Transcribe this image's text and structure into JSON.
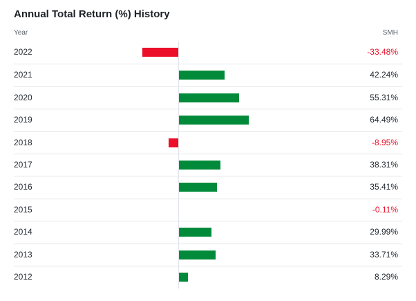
{
  "chart_data": {
    "type": "bar",
    "title": "Annual Total Return (%) History",
    "column_header_category": "Year",
    "column_header_series": "SMH",
    "categories": [
      "2022",
      "2021",
      "2020",
      "2019",
      "2018",
      "2017",
      "2016",
      "2015",
      "2014",
      "2013",
      "2012"
    ],
    "series": [
      {
        "name": "SMH",
        "values": [
          -33.48,
          42.24,
          55.31,
          64.49,
          -8.95,
          38.31,
          35.41,
          -0.11,
          29.99,
          33.71,
          8.29
        ]
      }
    ],
    "value_labels": [
      "-33.48%",
      "42.24%",
      "55.31%",
      "64.49%",
      "-8.95%",
      "38.31%",
      "35.41%",
      "-0.11%",
      "29.99%",
      "33.71%",
      "8.29%"
    ],
    "orientation": "horizontal",
    "colors": {
      "positive": "#008a39",
      "negative": "#eb0f29"
    }
  }
}
